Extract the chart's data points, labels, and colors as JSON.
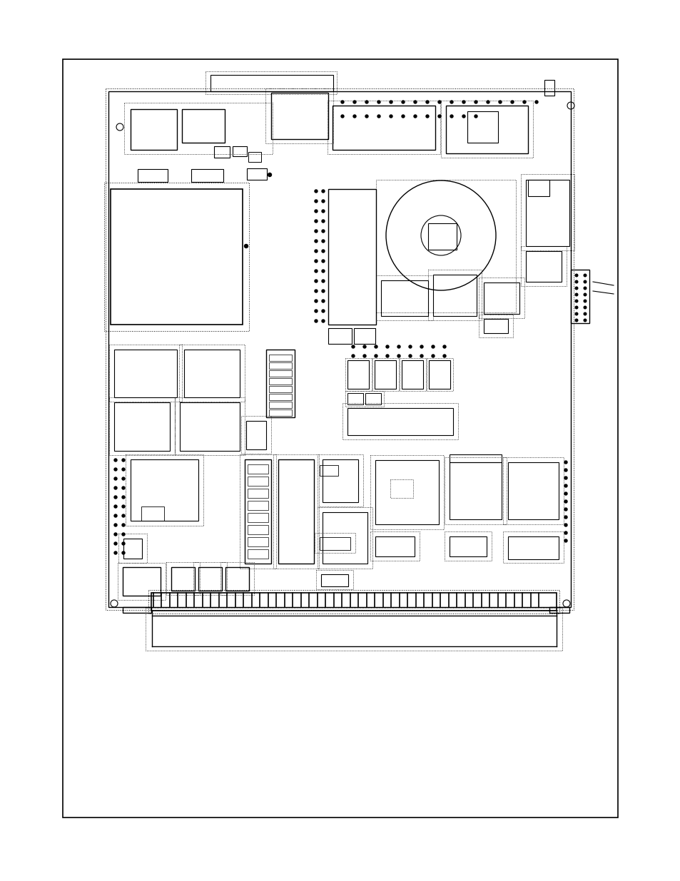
{
  "bg_color": "#ffffff",
  "fig_w": 9.54,
  "fig_h": 12.35,
  "dpi": 100
}
